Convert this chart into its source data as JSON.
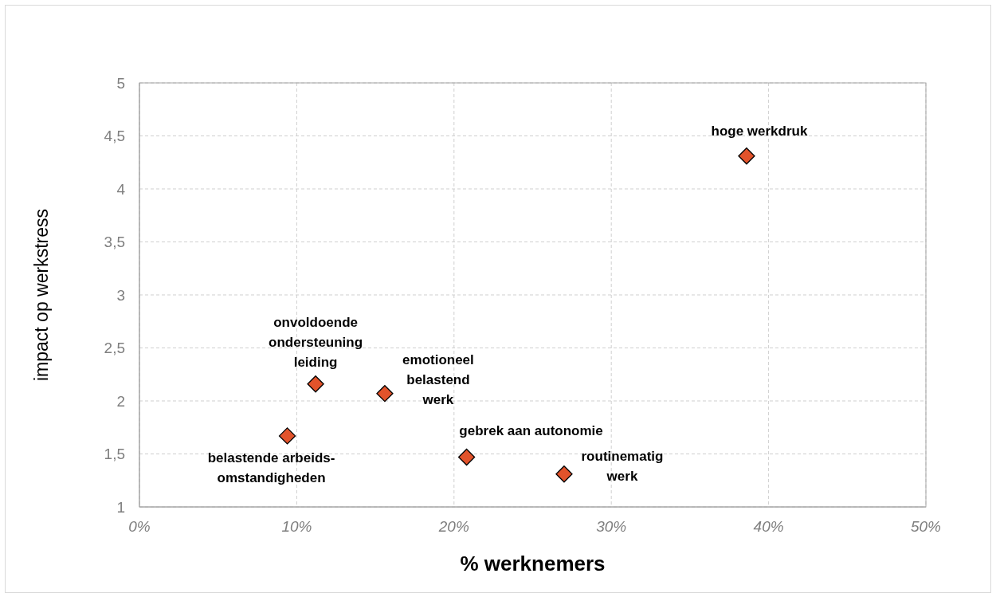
{
  "chart_data": {
    "type": "scatter",
    "xlabel": "% werknemers",
    "ylabel": "impact op werkstress",
    "series": [
      {
        "color": "#e2532b",
        "x": [
          38.6,
          11.2,
          15.6,
          9.4,
          20.8,
          27.0
        ],
        "values": [
          4.31,
          2.16,
          2.07,
          1.67,
          1.47,
          1.31
        ]
      }
    ],
    "xlim": [
      0,
      50
    ],
    "xticks": [
      {
        "value": 0,
        "label": "0%"
      },
      {
        "value": 10,
        "label": "10%"
      },
      {
        "value": 20,
        "label": "20%"
      },
      {
        "value": 30,
        "label": "30%"
      },
      {
        "value": 40,
        "label": "40%"
      },
      {
        "value": 50,
        "label": "50%"
      }
    ],
    "ylim": [
      1,
      5
    ],
    "yticks": [
      1,
      {
        "value": 1.5,
        "label": "1,5"
      },
      2,
      {
        "value": 2.5,
        "label": "2,5"
      },
      3,
      {
        "value": 3.5,
        "label": "3,5"
      },
      4,
      {
        "value": 4.5,
        "label": "4,5"
      },
      5
    ],
    "grid": true,
    "marker": "diamond",
    "annotations": [
      {
        "text": "hoge werkdruk",
        "x": 38.6,
        "y": 4.31
      },
      {
        "text": "onvoldoende\nondersteuning\nleiding",
        "x": 11.2,
        "y": 2.16
      },
      {
        "text": "emotioneel\nbelastend\nwerk",
        "x": 15.6,
        "y": 2.07
      },
      {
        "text": "belastende arbeids-\nomstandigheden",
        "x": 9.4,
        "y": 1.67
      },
      {
        "text": "gebrek aan autonomie",
        "x": 20.8,
        "y": 1.47
      },
      {
        "text": "routinematig\nwerk",
        "x": 27.0,
        "y": 1.31
      }
    ]
  }
}
